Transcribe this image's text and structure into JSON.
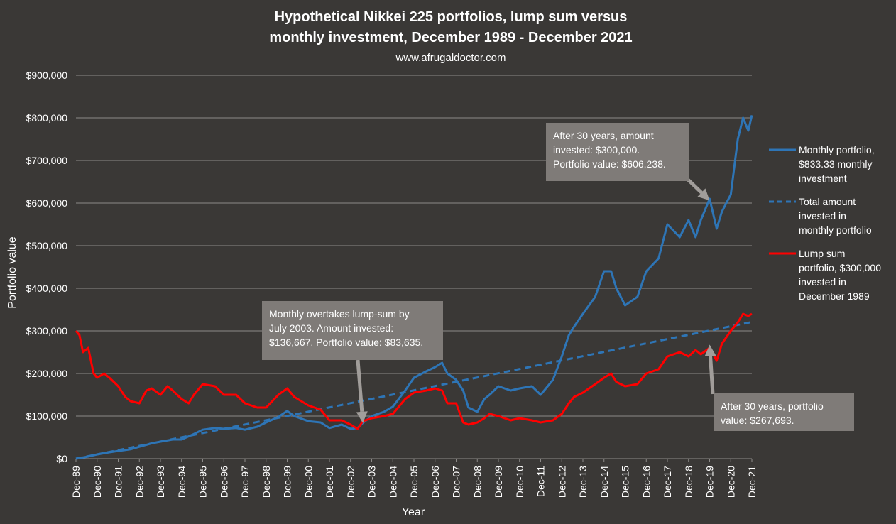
{
  "chart_data": {
    "type": "line",
    "title_line1": "Hypothetical Nikkei 225 portfolios, lump sum versus",
    "title_line2": "monthly investment, December 1989 - December 2021",
    "subtitle": "www.afrugaldoctor.com",
    "xlabel": "Year",
    "ylabel": "Portfolio value",
    "ylim": [
      0,
      900000
    ],
    "y_ticks": [
      "$0",
      "$100,000",
      "$200,000",
      "$300,000",
      "$400,000",
      "$500,000",
      "$600,000",
      "$700,000",
      "$800,000",
      "$900,000"
    ],
    "x_ticks": [
      "Dec-89",
      "Dec-90",
      "Dec-91",
      "Dec-92",
      "Dec-93",
      "Dec-94",
      "Dec-95",
      "Dec-96",
      "Dec-97",
      "Dec-98",
      "Dec-99",
      "Dec-00",
      "Dec-01",
      "Dec-02",
      "Dec-03",
      "Dec-04",
      "Dec-05",
      "Dec-06",
      "Dec-07",
      "Dec-08",
      "Dec-09",
      "Dec-10",
      "Dec-11",
      "Dec-12",
      "Dec-13",
      "Dec-14",
      "Dec-15",
      "Dec-16",
      "Dec-17",
      "Dec-18",
      "Dec-19",
      "Dec-20",
      "Dec-21"
    ],
    "x_range": [
      1989.917,
      2021.917
    ],
    "grid": true,
    "legend_position": "right",
    "series": [
      {
        "name": "Monthly portfolio, $833.33 monthly investment",
        "legend_lines": [
          "Monthly portfolio,",
          "$833.33 monthly",
          "investment"
        ],
        "color": "#2e75b6",
        "style": "solid",
        "x": [
          1989.917,
          1990.5,
          1990.917,
          1991.5,
          1991.917,
          1992.5,
          1992.917,
          1993.5,
          1993.917,
          1994.5,
          1994.917,
          1995.5,
          1995.917,
          1996.5,
          1996.917,
          1997.5,
          1997.917,
          1998.5,
          1998.917,
          1999.5,
          1999.917,
          2000.25,
          2000.917,
          2001.5,
          2001.917,
          2002.5,
          2002.917,
          2003.25,
          2003.5,
          2003.917,
          2004.5,
          2004.917,
          2005.5,
          2005.917,
          2006.5,
          2006.917,
          2007.25,
          2007.5,
          2007.917,
          2008.25,
          2008.5,
          2008.917,
          2009.25,
          2009.5,
          2009.917,
          2010.5,
          2010.917,
          2011.5,
          2011.917,
          2012.5,
          2012.917,
          2013.25,
          2013.5,
          2013.917,
          2014.5,
          2014.917,
          2015.25,
          2015.5,
          2015.917,
          2016.5,
          2016.917,
          2017.5,
          2017.917,
          2018.5,
          2018.917,
          2019.25,
          2019.5,
          2019.917,
          2020.25,
          2020.5,
          2020.917,
          2021.25,
          2021.5,
          2021.75,
          2021.917
        ],
        "y": [
          0,
          5000,
          10000,
          15000,
          18000,
          22000,
          28000,
          36000,
          40000,
          45000,
          45000,
          58000,
          68000,
          72000,
          70000,
          72000,
          68000,
          75000,
          85000,
          98000,
          112000,
          100000,
          88000,
          85000,
          72000,
          80000,
          70000,
          72000,
          84000,
          100000,
          110000,
          122000,
          160000,
          190000,
          205000,
          215000,
          225000,
          200000,
          185000,
          160000,
          120000,
          110000,
          140000,
          150000,
          170000,
          160000,
          165000,
          170000,
          150000,
          185000,
          240000,
          290000,
          310000,
          340000,
          380000,
          440000,
          440000,
          400000,
          360000,
          380000,
          440000,
          470000,
          550000,
          520000,
          560000,
          520000,
          560000,
          610000,
          540000,
          580000,
          620000,
          750000,
          800000,
          770000,
          806000
        ]
      },
      {
        "name": "Total amount invested in monthly portfolio",
        "legend_lines": [
          "Total amount",
          "invested in",
          "monthly portfolio"
        ],
        "color": "#2e75b6",
        "style": "dashed",
        "x": [
          1989.917,
          2021.917
        ],
        "y": [
          0,
          320833
        ]
      },
      {
        "name": "Lump sum portfolio, $300,000 invested in December 1989",
        "legend_lines": [
          "Lump sum",
          "portfolio, $300,000",
          "invested in",
          "December 1989"
        ],
        "color": "#ff0000",
        "style": "solid",
        "x": [
          1989.917,
          1990.083,
          1990.25,
          1990.5,
          1990.75,
          1990.917,
          1991.25,
          1991.5,
          1991.917,
          1992.25,
          1992.5,
          1992.917,
          1993.25,
          1993.5,
          1993.917,
          1994.25,
          1994.5,
          1994.917,
          1995.25,
          1995.5,
          1995.917,
          1996.5,
          1996.917,
          1997.5,
          1997.917,
          1998.5,
          1998.917,
          1999.5,
          1999.917,
          2000.25,
          2000.917,
          2001.5,
          2001.917,
          2002.5,
          2002.917,
          2003.25,
          2003.5,
          2003.917,
          2004.5,
          2004.917,
          2005.5,
          2005.917,
          2006.5,
          2006.917,
          2007.25,
          2007.5,
          2007.917,
          2008.25,
          2008.5,
          2008.917,
          2009.25,
          2009.5,
          2009.917,
          2010.5,
          2010.917,
          2011.5,
          2011.917,
          2012.5,
          2012.917,
          2013.25,
          2013.5,
          2013.917,
          2014.5,
          2014.917,
          2015.25,
          2015.5,
          2015.917,
          2016.5,
          2016.917,
          2017.5,
          2017.917,
          2018.5,
          2018.917,
          2019.25,
          2019.5,
          2019.917,
          2020.25,
          2020.5,
          2020.917,
          2021.25,
          2021.5,
          2021.75,
          2021.917
        ],
        "y": [
          300000,
          290000,
          250000,
          260000,
          200000,
          190000,
          200000,
          190000,
          170000,
          145000,
          135000,
          130000,
          160000,
          165000,
          150000,
          170000,
          160000,
          140000,
          130000,
          150000,
          175000,
          170000,
          150000,
          150000,
          130000,
          120000,
          120000,
          150000,
          165000,
          145000,
          125000,
          115000,
          90000,
          90000,
          80000,
          70000,
          88000,
          95000,
          100000,
          105000,
          140000,
          155000,
          160000,
          165000,
          160000,
          130000,
          130000,
          85000,
          80000,
          85000,
          95000,
          105000,
          100000,
          90000,
          95000,
          90000,
          85000,
          90000,
          105000,
          130000,
          145000,
          155000,
          175000,
          190000,
          200000,
          180000,
          170000,
          175000,
          200000,
          210000,
          240000,
          250000,
          240000,
          255000,
          245000,
          260000,
          230000,
          270000,
          300000,
          320000,
          340000,
          335000,
          340000
        ]
      }
    ],
    "annotations": [
      {
        "lines": [
          "After 30 years, amount",
          "invested: $300,000.",
          "Portfolio value: $606,238."
        ],
        "target_x": 2019.917,
        "target_y": 606238
      },
      {
        "lines": [
          "Monthly overtakes lump-sum by",
          "July 2003. Amount invested:",
          "$136,667. Portfolio value: $83,635."
        ],
        "target_x": 2003.5,
        "target_y": 83635
      },
      {
        "lines": [
          "After 30 years, portfolio",
          "value: $267,693."
        ],
        "target_x": 2019.917,
        "target_y": 267693
      }
    ],
    "colors": {
      "background": "#3a3836",
      "grid": "#8c8a88",
      "annotation_box": "#7f7b78",
      "text": "#ffffff"
    }
  }
}
